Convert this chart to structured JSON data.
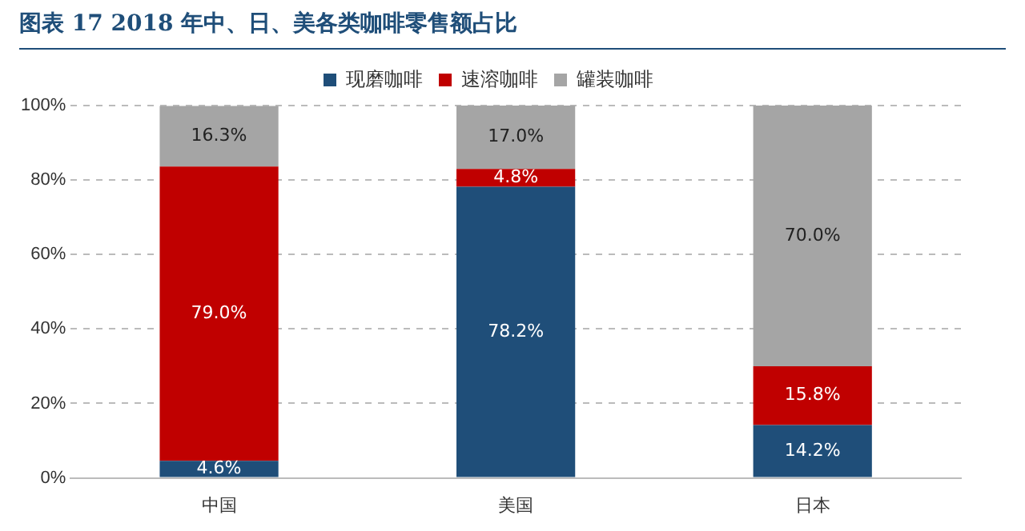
{
  "chart_data": {
    "type": "bar",
    "stacked": true,
    "title": "图表 17   2018 年中、日、美各类咖啡零售额占比",
    "categories": [
      "中国",
      "美国",
      "日本"
    ],
    "series": [
      {
        "name": "现磨咖啡",
        "color": "#1f4e79",
        "values": [
          4.6,
          78.2,
          14.2
        ],
        "value_labels": [
          "4.6%",
          "78.2%",
          "14.2%"
        ]
      },
      {
        "name": "速溶咖啡",
        "color": "#c00000",
        "values": [
          79.0,
          4.8,
          15.8
        ],
        "value_labels": [
          "79.0%",
          "4.8%",
          "15.8%"
        ]
      },
      {
        "name": "罐装咖啡",
        "color": "#a5a5a5",
        "values": [
          16.3,
          17.0,
          70.0
        ],
        "value_labels": [
          "16.3%",
          "17.0%",
          "70.0%"
        ]
      }
    ],
    "ylim": [
      0,
      100
    ],
    "yticks": [
      {
        "value": 0,
        "label": "0%"
      },
      {
        "value": 20,
        "label": "20%"
      },
      {
        "value": 40,
        "label": "40%"
      },
      {
        "value": 60,
        "label": "60%"
      },
      {
        "value": 80,
        "label": "80%"
      },
      {
        "value": 100,
        "label": "100%"
      }
    ],
    "grid": "y",
    "legend": "top"
  }
}
